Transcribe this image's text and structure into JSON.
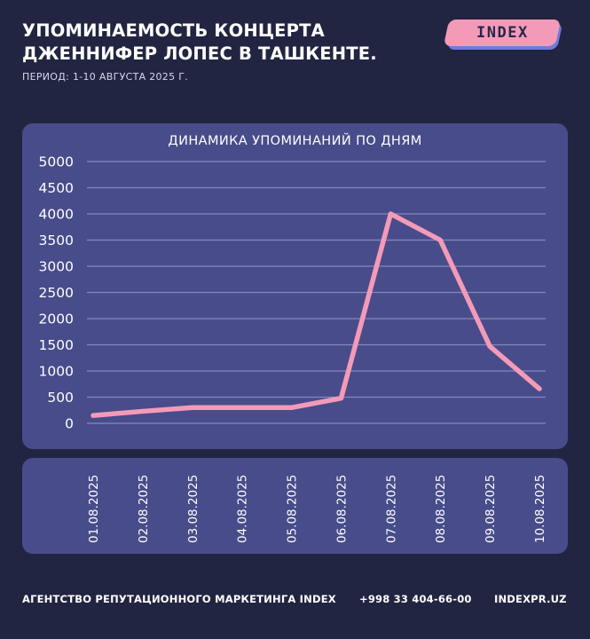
{
  "header": {
    "title": "УПОМИНАЕМОСТЬ КОНЦЕРТА\nДЖЕННИФЕР ЛОПЕС В ТАШКЕНТЕ.",
    "subtitle": "ПЕРИОД: 1-10 АВГУСТА 2025 Г."
  },
  "logo": {
    "text": "INDEX"
  },
  "colors": {
    "background": "#222541",
    "panel": "#484c8a",
    "line": "#f49ab9",
    "grid": "#8a8fc4",
    "logo_pink": "#f49ab9",
    "logo_blue": "#6e7cde"
  },
  "chart_data": {
    "type": "line",
    "title": "ДИНАМИКА УПОМИНАНИЙ ПО ДНЯМ",
    "categories": [
      "01.08.2025",
      "02.08.2025",
      "03.08.2025",
      "04.08.2025",
      "05.08.2025",
      "06.08.2025",
      "07.08.2025",
      "08.08.2025",
      "09.08.2025",
      "10.08.2025"
    ],
    "series": [
      {
        "values": [
          150,
          230,
          300,
          300,
          300,
          480,
          4000,
          3500,
          1470,
          660
        ]
      }
    ],
    "ylim": [
      0,
      5000
    ],
    "yticks": [
      0,
      500,
      1000,
      1500,
      2000,
      2500,
      3000,
      3500,
      4000,
      4500,
      5000
    ],
    "grid": true,
    "legend": "none"
  },
  "footer": {
    "agency": "АГЕНТСТВО РЕПУТАЦИОННОГО МАРКЕТИНГА INDEX",
    "phone": "+998 33 404-66-00",
    "site": "INDEXPR.UZ"
  }
}
